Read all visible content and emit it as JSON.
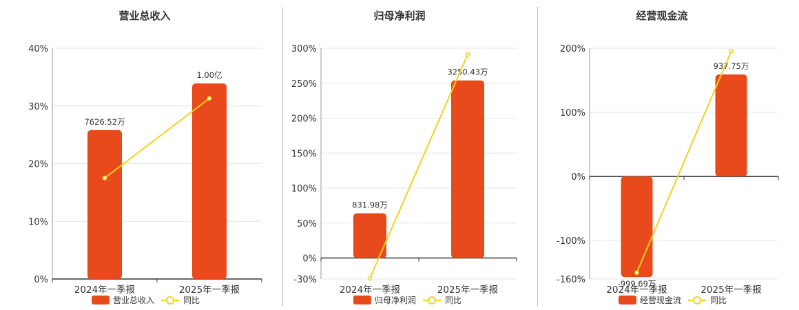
{
  "colors": {
    "bar": "#e84a1b",
    "line": "#f2d21b",
    "grid": "#e6e6e6",
    "axis": "#333333"
  },
  "chart_data": [
    {
      "type": "bar",
      "title": "营业总收入",
      "categories": [
        "2024年一季报",
        "2025年一季报"
      ],
      "yticks": [
        "0%",
        "10%",
        "20%",
        "30%",
        "40%"
      ],
      "ylim": [
        0,
        40
      ],
      "series": [
        {
          "name": "营业总收入",
          "type": "bar",
          "values": [
            25.8,
            33.9
          ],
          "labels": [
            "7626.52万",
            "1.00亿"
          ]
        },
        {
          "name": "同比",
          "type": "line",
          "values": [
            17.5,
            31.3
          ]
        }
      ],
      "legend": "bottom"
    },
    {
      "type": "bar",
      "title": "归母净利润",
      "categories": [
        "2024年一季报",
        "2025年一季报"
      ],
      "yticks": [
        "-30%",
        "0%",
        "50%",
        "100%",
        "150%",
        "200%",
        "250%",
        "300%"
      ],
      "ylim": [
        -30,
        300
      ],
      "series": [
        {
          "name": "归母净利润",
          "type": "bar",
          "values": [
            64,
            254
          ],
          "labels": [
            "831.98万",
            "3250.43万"
          ]
        },
        {
          "name": "同比",
          "type": "line",
          "values": [
            -29,
            291
          ]
        }
      ],
      "legend": "bottom"
    },
    {
      "type": "bar",
      "title": "经营现金流",
      "categories": [
        "2024年一季报",
        "2025年一季报"
      ],
      "yticks": [
        "-160%",
        "-100%",
        "0%",
        "100%",
        "200%"
      ],
      "ylim": [
        -160,
        200
      ],
      "series": [
        {
          "name": "经营现金流",
          "type": "bar",
          "values": [
            -157,
            159
          ],
          "labels": [
            "-999.69万",
            "937.75万"
          ]
        },
        {
          "name": "同比",
          "type": "line",
          "values": [
            -150,
            195
          ]
        }
      ],
      "legend": "bottom"
    }
  ]
}
